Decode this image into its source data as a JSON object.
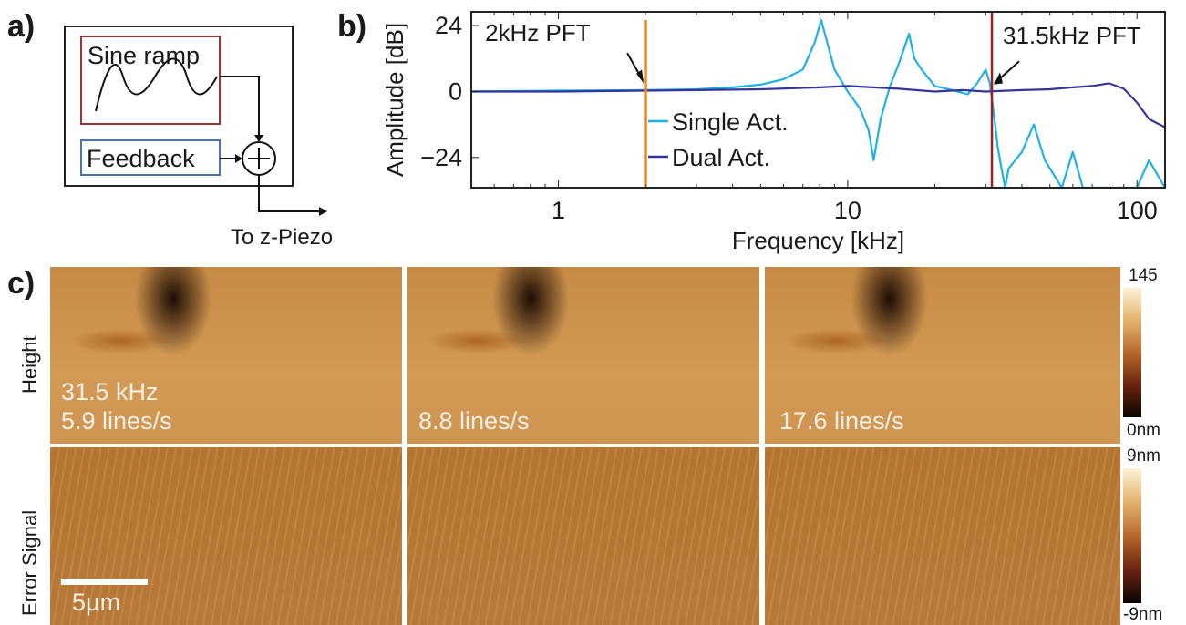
{
  "panel_a": {
    "letter": "a)",
    "sine_ramp": "Sine ramp",
    "feedback": "Feedback",
    "output_label": "To z-Piezo"
  },
  "panel_b": {
    "letter": "b)",
    "annotation_2k": "2kHz PFT",
    "annotation_31k": "31.5kHz PFT",
    "colors": {
      "single": "#1fb1e6",
      "dual": "#34369a",
      "pft2k": "#e08a2c",
      "pft31k": "#9b2020"
    }
  },
  "panel_c": {
    "letter": "c)",
    "row_height": "Height",
    "row_error": "Error Signal",
    "image_labels": [
      "31.5 kHz",
      "5.9 lines/s",
      "8.8 lines/s",
      "17.6 lines/s"
    ],
    "height_scale": {
      "max": "145",
      "min": "0nm"
    },
    "error_scale": {
      "max": "9nm",
      "min": "-9nm"
    },
    "scalebar": "5µm"
  },
  "chart_data": {
    "type": "line",
    "xlabel": "Frequency [kHz]",
    "ylabel": "Amplitude [dB]",
    "xscale": "log",
    "xlim": [
      0.5,
      125
    ],
    "ylim": [
      -35,
      29
    ],
    "xticks": [
      1,
      10,
      100
    ],
    "yticks": [
      24,
      0,
      -24
    ],
    "xtick_labels": [
      "1",
      "10",
      "100"
    ],
    "ytick_labels": [
      "24",
      "0",
      "−24"
    ],
    "legend": {
      "placement": "center",
      "entries": [
        "Single Act.",
        "Dual Act."
      ]
    },
    "series": [
      {
        "name": "Single Act.",
        "x": [
          0.5,
          1,
          2,
          3,
          4,
          5,
          6,
          7,
          7.7,
          8.1,
          9,
          10,
          11,
          11.8,
          12.3,
          13,
          14,
          15,
          16.3,
          17,
          18,
          20,
          22,
          24,
          26,
          28,
          30,
          31,
          32,
          33,
          34,
          35,
          36,
          40,
          44,
          48,
          55,
          60,
          65,
          70,
          80,
          90,
          100,
          110,
          125
        ],
        "y": [
          0,
          0.3,
          0.5,
          0.8,
          1.5,
          2.5,
          4.5,
          8,
          18,
          26,
          8,
          0,
          -6,
          -14,
          -25,
          -10,
          2,
          10,
          21,
          12,
          8,
          2,
          1,
          0,
          -1,
          3,
          8,
          3,
          -8,
          -20,
          -28,
          -35,
          -28,
          -22,
          -12,
          -25,
          -35,
          -22,
          -35,
          -35,
          -35,
          -35,
          -35,
          -25,
          -35
        ]
      },
      {
        "name": "Dual Act.",
        "x": [
          0.5,
          1,
          2,
          3,
          5,
          8,
          10,
          15,
          20,
          25,
          30,
          40,
          50,
          60,
          70,
          80,
          85,
          90,
          100,
          110,
          125
        ],
        "y": [
          0,
          0,
          0.3,
          0.5,
          0.8,
          1.5,
          2,
          1,
          0,
          0.5,
          0,
          0.5,
          0.8,
          1.5,
          2,
          3,
          2,
          1,
          -4,
          -10,
          -13
        ]
      }
    ],
    "markers": [
      {
        "label": "2kHz PFT",
        "x": 2,
        "y_range": [
          -35,
          26
        ]
      },
      {
        "label": "31.5kHz PFT",
        "x": 31.5,
        "y_range": [
          -35,
          29
        ]
      }
    ]
  }
}
